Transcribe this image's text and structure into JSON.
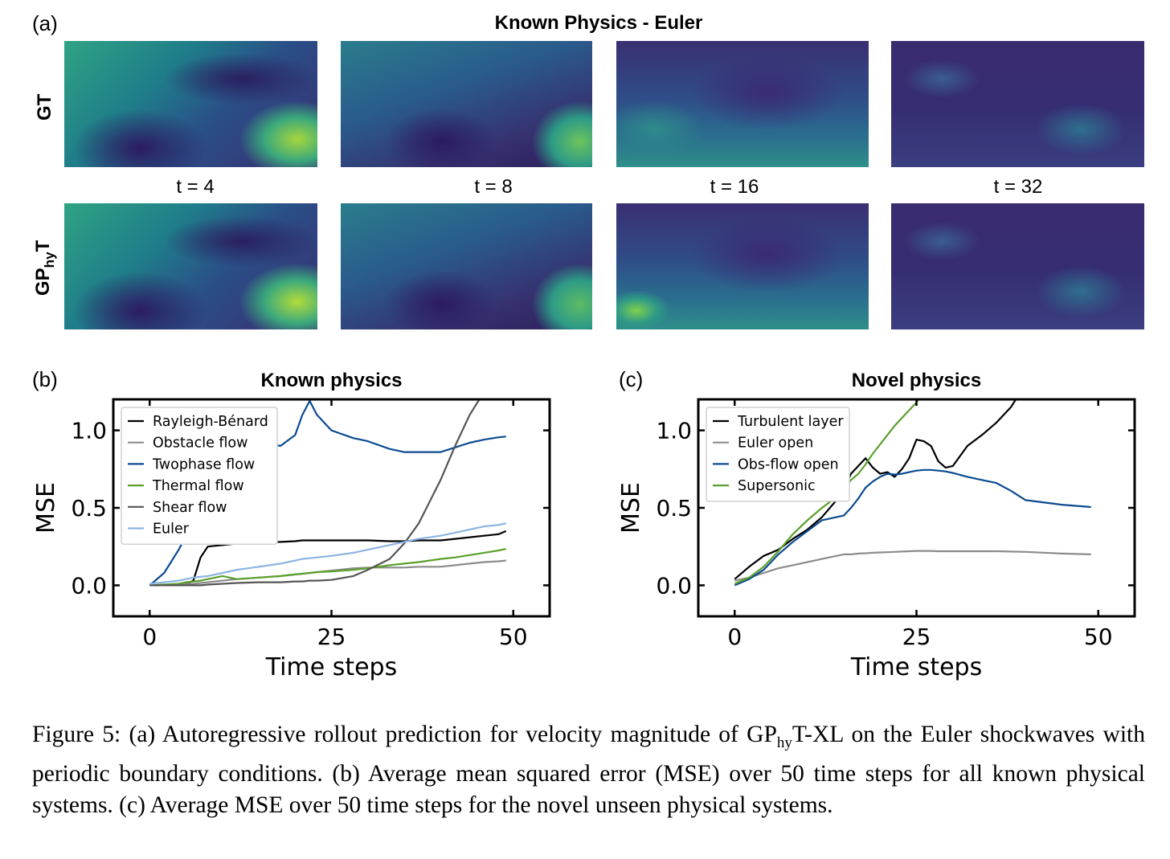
{
  "panel_a": {
    "label": "(a)",
    "title": "Known Physics - Euler",
    "row_gt": "GT",
    "row_pred_main": "GP",
    "row_pred_sub": "hy",
    "row_pred_end": "T",
    "time_labels": [
      "t = 4",
      "t = 8",
      "t = 16",
      "t = 32"
    ]
  },
  "chart_data": [
    {
      "type": "line",
      "panel_label": "(b)",
      "title": "Known physics",
      "xlabel": "Time steps",
      "ylabel": "MSE",
      "xlim": [
        -5,
        55
      ],
      "ylim": [
        -0.2,
        1.2
      ],
      "xticks": [
        0,
        25,
        50
      ],
      "xtick_labels": [
        "0",
        "25",
        "50"
      ],
      "yticks": [
        0.0,
        0.5,
        1.0
      ],
      "ytick_labels": [
        "0.0",
        "0.5",
        "1.0"
      ],
      "legend_position": "top-left",
      "x": [
        0,
        2,
        4,
        5,
        6,
        7,
        8,
        10,
        12,
        15,
        18,
        20,
        21,
        22,
        23,
        25,
        28,
        30,
        33,
        35,
        37,
        40,
        42,
        44,
        46,
        48,
        49
      ],
      "series": [
        {
          "name": "Rayleigh-Bénard",
          "color": "#000000",
          "values": [
            0.0,
            0.0,
            0.005,
            0.01,
            0.03,
            0.18,
            0.25,
            0.26,
            0.27,
            0.275,
            0.28,
            0.285,
            0.29,
            0.29,
            0.29,
            0.29,
            0.29,
            0.29,
            0.285,
            0.285,
            0.29,
            0.29,
            0.3,
            0.31,
            0.32,
            0.33,
            0.35
          ]
        },
        {
          "name": "Obstacle flow",
          "color": "#8c8c8c",
          "values": [
            0.0,
            0.0,
            0.005,
            0.008,
            0.01,
            0.015,
            0.02,
            0.03,
            0.04,
            0.05,
            0.06,
            0.07,
            0.075,
            0.08,
            0.085,
            0.095,
            0.11,
            0.115,
            0.115,
            0.115,
            0.12,
            0.12,
            0.13,
            0.14,
            0.15,
            0.155,
            0.16
          ]
        },
        {
          "name": "Twophase flow",
          "color": "#0b4a91",
          "values": [
            0.0,
            0.08,
            0.23,
            0.32,
            0.42,
            0.5,
            0.58,
            0.68,
            0.8,
            0.92,
            0.9,
            0.97,
            1.1,
            1.19,
            1.1,
            1.0,
            0.95,
            0.93,
            0.88,
            0.86,
            0.86,
            0.86,
            0.89,
            0.92,
            0.94,
            0.955,
            0.96
          ]
        },
        {
          "name": "Thermal flow",
          "color": "#5aa02c",
          "values": [
            0.0,
            0.005,
            0.01,
            0.02,
            0.025,
            0.03,
            0.04,
            0.06,
            0.04,
            0.05,
            0.06,
            0.07,
            0.075,
            0.08,
            0.085,
            0.09,
            0.1,
            0.11,
            0.13,
            0.14,
            0.15,
            0.17,
            0.18,
            0.195,
            0.21,
            0.225,
            0.235
          ]
        },
        {
          "name": "Shear flow",
          "color": "#555555",
          "values": [
            0.0,
            0.0,
            0.0,
            0.0,
            0.0,
            0.0,
            0.005,
            0.01,
            0.015,
            0.02,
            0.02,
            0.025,
            0.025,
            0.03,
            0.03,
            0.035,
            0.06,
            0.1,
            0.17,
            0.27,
            0.4,
            0.68,
            0.9,
            1.1,
            1.25,
            1.3,
            1.3
          ]
        },
        {
          "name": "Euler",
          "color": "#8cb4e2",
          "values": [
            0.01,
            0.02,
            0.03,
            0.04,
            0.05,
            0.055,
            0.06,
            0.08,
            0.1,
            0.12,
            0.14,
            0.16,
            0.17,
            0.175,
            0.18,
            0.19,
            0.21,
            0.23,
            0.26,
            0.28,
            0.3,
            0.32,
            0.34,
            0.36,
            0.38,
            0.39,
            0.4
          ]
        }
      ]
    },
    {
      "type": "line",
      "panel_label": "(c)",
      "title": "Novel physics",
      "xlabel": "Time steps",
      "ylabel": "MSE",
      "xlim": [
        -5,
        55
      ],
      "ylim": [
        -0.2,
        1.2
      ],
      "xticks": [
        0,
        25,
        50
      ],
      "xtick_labels": [
        "0",
        "25",
        "50"
      ],
      "yticks": [
        0.0,
        0.5,
        1.0
      ],
      "ytick_labels": [
        "0.0",
        "0.5",
        "1.0"
      ],
      "legend_position": "top-left",
      "x": [
        0,
        2,
        4,
        6,
        8,
        10,
        12,
        14,
        15,
        16,
        17,
        18,
        19,
        20,
        21,
        22,
        23,
        24,
        25,
        26,
        27,
        28,
        29,
        30,
        32,
        34,
        36,
        38,
        40,
        45,
        49
      ],
      "series": [
        {
          "name": "Turbulent layer",
          "color": "#000000",
          "values": [
            0.04,
            0.12,
            0.19,
            0.23,
            0.3,
            0.36,
            0.44,
            0.55,
            0.62,
            0.72,
            0.77,
            0.82,
            0.76,
            0.72,
            0.73,
            0.7,
            0.75,
            0.82,
            0.94,
            0.93,
            0.9,
            0.8,
            0.76,
            0.77,
            0.9,
            0.97,
            1.05,
            1.15,
            1.3,
            1.3,
            1.3
          ]
        },
        {
          "name": "Euler open",
          "color": "#8c8c8c",
          "values": [
            0.03,
            0.05,
            0.08,
            0.11,
            0.13,
            0.15,
            0.17,
            0.19,
            0.2,
            0.2,
            0.205,
            0.207,
            0.21,
            0.212,
            0.214,
            0.216,
            0.218,
            0.22,
            0.222,
            0.222,
            0.222,
            0.22,
            0.22,
            0.22,
            0.22,
            0.22,
            0.22,
            0.218,
            0.216,
            0.205,
            0.2
          ]
        },
        {
          "name": "Obs-flow open",
          "color": "#0b4a91",
          "values": [
            0.0,
            0.04,
            0.1,
            0.2,
            0.28,
            0.35,
            0.42,
            0.44,
            0.45,
            0.5,
            0.56,
            0.63,
            0.67,
            0.7,
            0.72,
            0.715,
            0.72,
            0.73,
            0.74,
            0.745,
            0.745,
            0.74,
            0.735,
            0.725,
            0.7,
            0.68,
            0.66,
            0.61,
            0.55,
            0.52,
            0.505
          ]
        },
        {
          "name": "Supersonic",
          "color": "#5aa02c",
          "values": [
            0.01,
            0.05,
            0.12,
            0.22,
            0.33,
            0.42,
            0.5,
            0.57,
            0.62,
            0.68,
            0.72,
            0.78,
            0.85,
            0.91,
            0.97,
            1.03,
            1.08,
            1.13,
            1.18,
            1.25,
            1.3,
            1.3,
            1.3,
            1.3,
            1.3,
            1.3,
            1.3,
            1.3,
            1.3,
            1.3,
            1.3
          ]
        }
      ]
    }
  ],
  "caption": {
    "p1": "Figure 5: (a) Autoregressive rollout prediction for velocity magnitude of GP",
    "p1_sub": "hy",
    "p2": "T-XL on the Euler shockwaves with periodic boundary conditions. (b) Average mean squared error (MSE) over 50 time steps for all known physical systems. (c) Average MSE over 50 time steps for the novel unseen physical systems."
  }
}
